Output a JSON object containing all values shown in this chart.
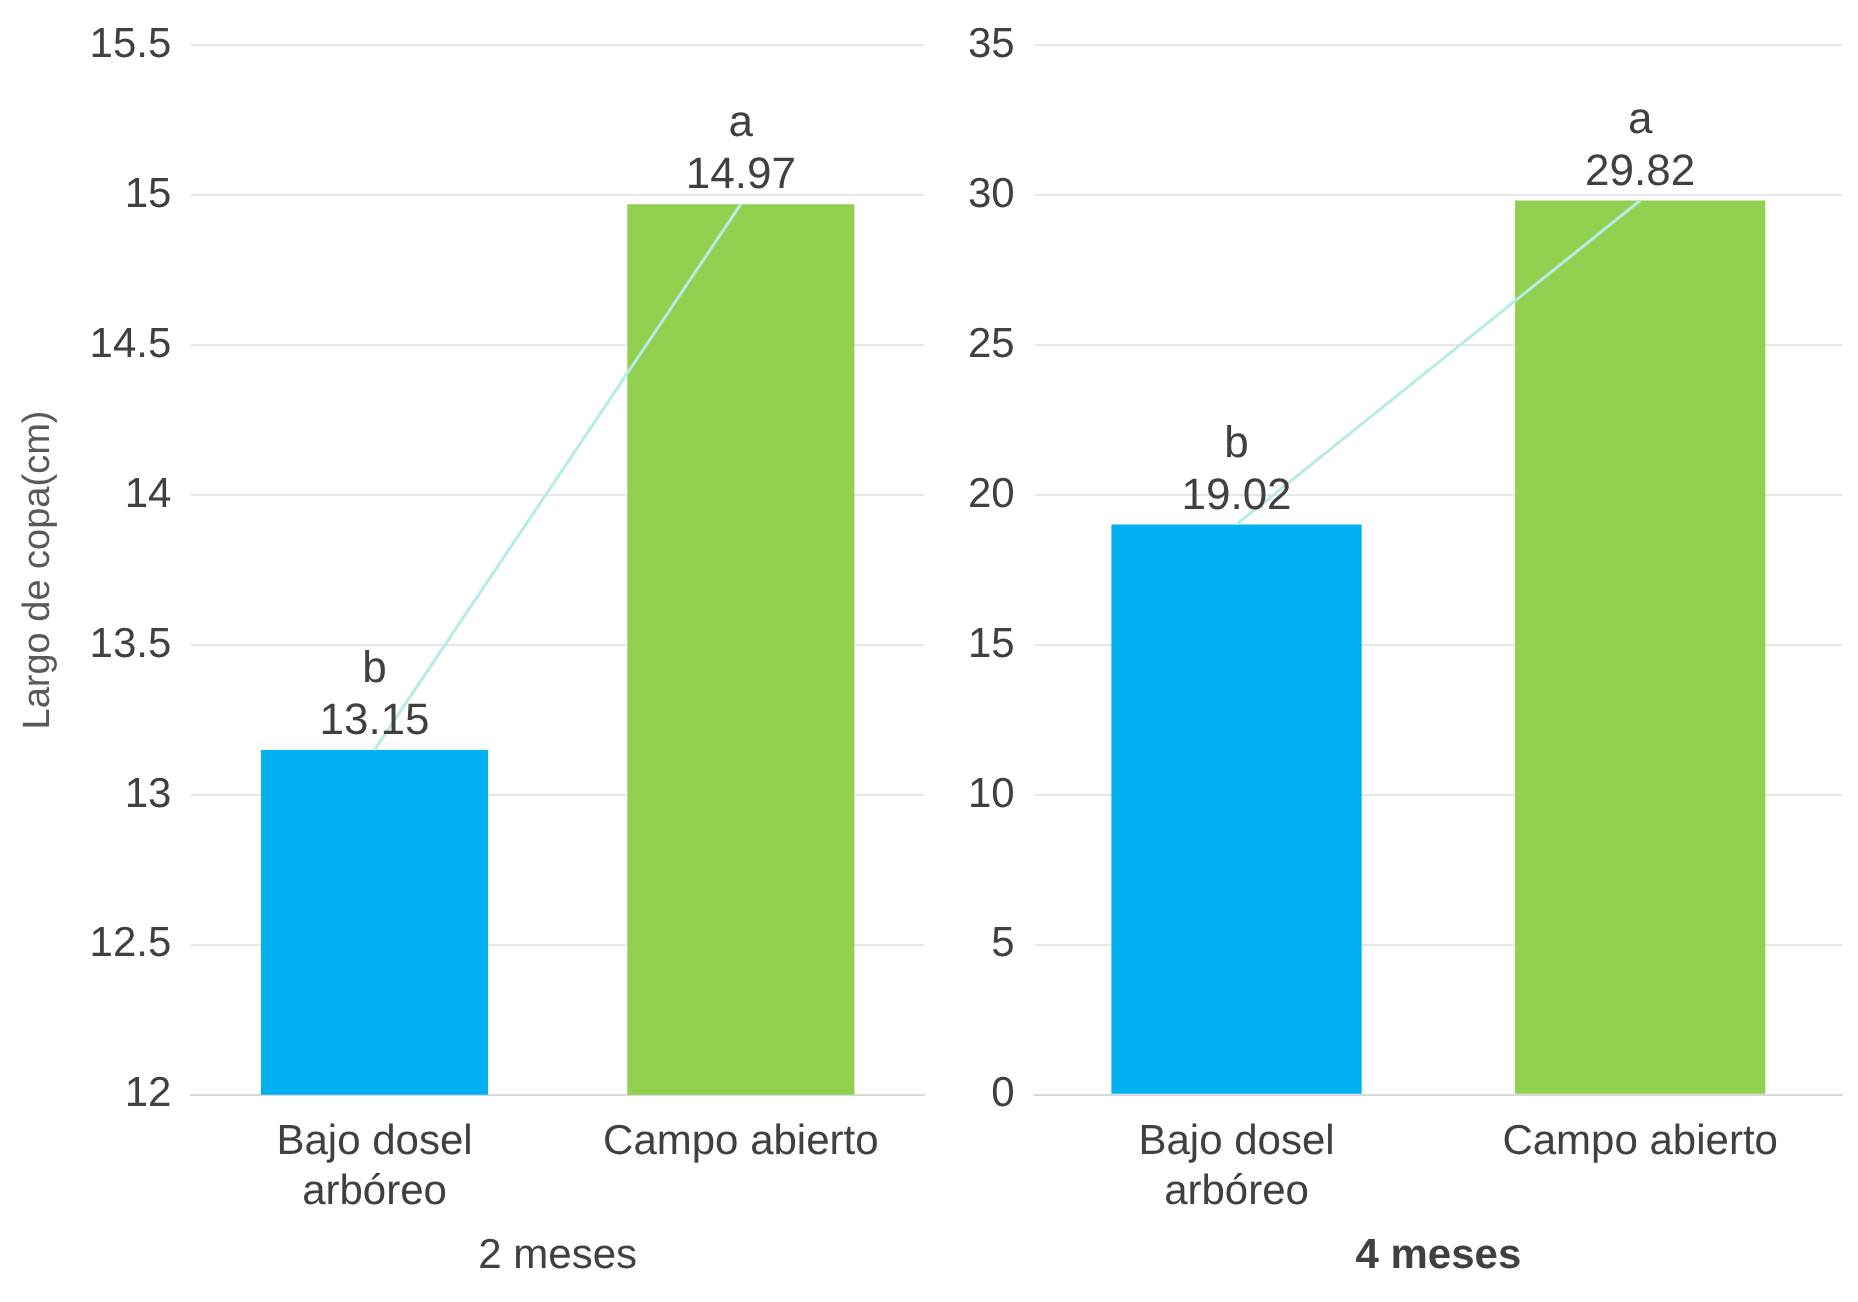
{
  "chart_data": [
    {
      "type": "bar",
      "ylabel": "Largo de copa(cm)",
      "xlabel": "2 meses",
      "categories": [
        "Bajo dosel arbóreo",
        "Campo abierto"
      ],
      "series": [
        {
          "colors": [
            "#00b0f0",
            "#92d050"
          ],
          "values": [
            13.15,
            14.97
          ],
          "value_labels": [
            "13.15",
            "14.97"
          ]
        },
        {
          "type": "line",
          "color": "#b5ece6",
          "values": [
            13.15,
            14.97
          ]
        }
      ],
      "ylim": [
        12,
        15.5
      ],
      "yticks": [
        12,
        12.5,
        13,
        13.5,
        14,
        14.5,
        15,
        15.5
      ],
      "grid": "y",
      "legend": false,
      "marker": "none",
      "annotations": [
        {
          "text": "b",
          "x": "Bajo dosel arbóreo",
          "y": 13.15
        },
        {
          "text": "a",
          "x": "Campo abierto",
          "y": 14.97
        }
      ]
    },
    {
      "type": "bar",
      "xlabel": "4 meses",
      "categories": [
        "Bajo dosel arbóreo",
        "Campo abierto"
      ],
      "series": [
        {
          "colors": [
            "#00b0f0",
            "#92d050"
          ],
          "values": [
            19.02,
            29.82
          ],
          "value_labels": [
            "19.02",
            "29.82"
          ]
        },
        {
          "type": "line",
          "color": "#b5ece6",
          "values": [
            19.02,
            29.82
          ]
        }
      ],
      "ylim": [
        0,
        35
      ],
      "yticks": [
        0,
        5,
        10,
        15,
        20,
        25,
        30,
        35
      ],
      "grid": "y",
      "legend": false,
      "marker": "none",
      "annotations": [
        {
          "text": "b",
          "x": "Bajo dosel arbóreo",
          "y": 19.02
        },
        {
          "text": "a",
          "x": "Campo abierto",
          "y": 29.82
        }
      ]
    }
  ]
}
